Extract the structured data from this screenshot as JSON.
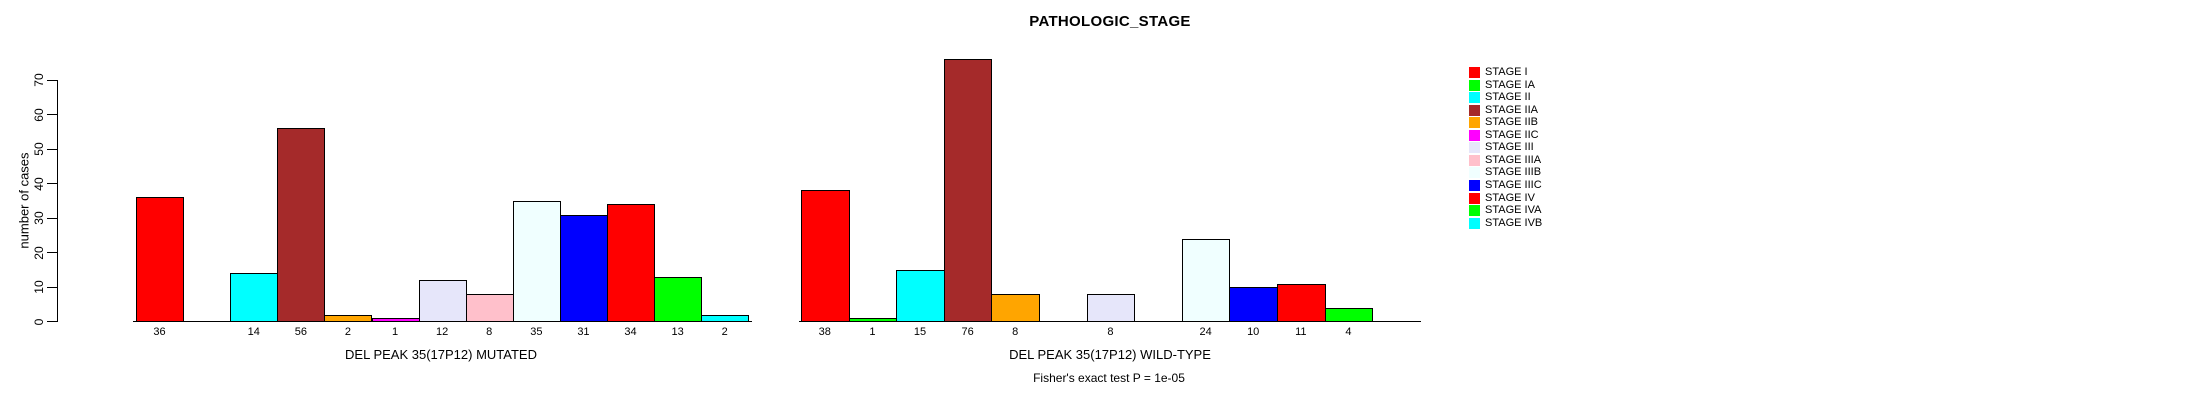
{
  "chart_data": {
    "type": "bar",
    "title": "PATHOLOGIC_STAGE",
    "ylabel": "number of cases",
    "ylim": [
      0,
      70
    ],
    "yticks": [
      0,
      10,
      20,
      30,
      40,
      50,
      60,
      70
    ],
    "grid": false,
    "legend_position": "right",
    "categories": [
      "STAGE I",
      "STAGE IA",
      "STAGE II",
      "STAGE IIA",
      "STAGE IIB",
      "STAGE IIC",
      "STAGE III",
      "STAGE IIIA",
      "STAGE IIIB",
      "STAGE IIIC",
      "STAGE IV",
      "STAGE IVA",
      "STAGE IVB"
    ],
    "colors": [
      "#FF0000",
      "#00FF00",
      "#00FFFF",
      "#A52A2A",
      "#FFA500",
      "#FF00FF",
      "#E6E6FA",
      "#FFC0CB",
      "#F0FFFF",
      "#0000FF",
      "#FF0000",
      "#00FF00",
      "#00FFFF"
    ],
    "bar_outline_color": "#000000",
    "series": [
      {
        "name": "DEL PEAK 35(17P12) MUTATED",
        "values": [
          36,
          0,
          14,
          56,
          2,
          1,
          12,
          8,
          35,
          31,
          34,
          13,
          2
        ]
      },
      {
        "name": "DEL PEAK 35(17P12) WILD-TYPE",
        "values": [
          38,
          1,
          15,
          76,
          8,
          0,
          8,
          0,
          24,
          10,
          11,
          4,
          0
        ]
      }
    ],
    "footnote": "Fisher's exact test P = 1e-05"
  }
}
